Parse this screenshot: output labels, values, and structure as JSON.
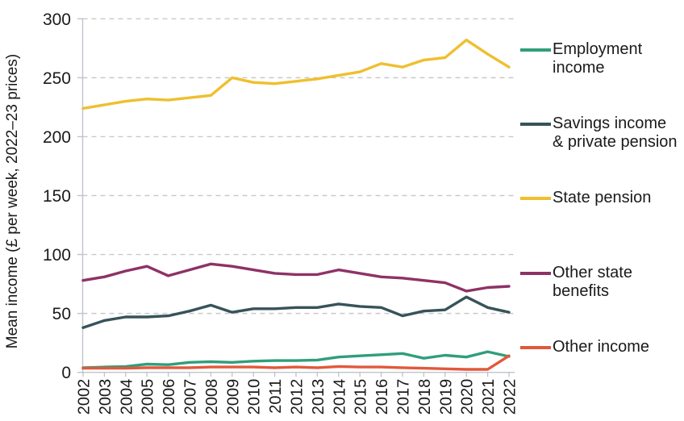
{
  "chart_data": {
    "type": "line",
    "title": "",
    "ylabel": "Mean income (£ per week, 2022–23 prices)",
    "xlabel": "",
    "x": [
      "2002",
      "2003",
      "2004",
      "2005",
      "2006",
      "2007",
      "2008",
      "2009",
      "2010",
      "2011",
      "2012",
      "2013",
      "2014",
      "2015",
      "2016",
      "2017",
      "2018",
      "2019",
      "2020",
      "2021",
      "2022"
    ],
    "ylim": [
      0,
      300
    ],
    "yticks": [
      0,
      50,
      100,
      150,
      200,
      250,
      300
    ],
    "grid": "horizontal-dashed",
    "legend_position": "right",
    "colors": {
      "grid": "#c9c9c9",
      "axis": "#bdc4ca",
      "text": "#1a1a1a"
    },
    "series": [
      {
        "name": "Employment income",
        "legend_label": "Employment\nincome",
        "color": "#309E7B",
        "values": [
          4,
          4.5,
          5,
          7,
          6.5,
          8.5,
          9,
          8.5,
          9.5,
          10,
          10,
          10.5,
          13,
          14,
          15,
          16,
          12,
          14.5,
          13,
          17.5,
          13.5
        ]
      },
      {
        "name": "Savings income & private pension",
        "legend_label": "Savings income\n& private pension",
        "color": "#37535A",
        "values": [
          38,
          44,
          47,
          47,
          48,
          52,
          57,
          51,
          54,
          54,
          55,
          55,
          58,
          56,
          55,
          48,
          52,
          53,
          64,
          55,
          51
        ]
      },
      {
        "name": "State pension",
        "legend_label": "State pension",
        "color": "#EFBF2F",
        "values": [
          224,
          227,
          230,
          232,
          231,
          233,
          235,
          250,
          246,
          245,
          247,
          249,
          252,
          255,
          262,
          259,
          265,
          267,
          282,
          270,
          259
        ]
      },
      {
        "name": "Other state benefits",
        "legend_label": "Other state\nbenefits",
        "color": "#8E3266",
        "values": [
          78,
          81,
          86,
          90,
          82,
          87,
          92,
          90,
          87,
          84,
          83,
          83,
          87,
          84,
          81,
          80,
          78,
          76,
          69,
          72,
          73
        ]
      },
      {
        "name": "Other income",
        "legend_label": "Other income",
        "color": "#E2583C",
        "values": [
          3.5,
          3.5,
          3.5,
          4,
          4,
          4,
          4.5,
          4.5,
          4.5,
          4,
          4.5,
          4,
          5,
          4.5,
          4.5,
          4,
          3.5,
          3,
          2.5,
          2.5,
          14
        ]
      }
    ]
  }
}
